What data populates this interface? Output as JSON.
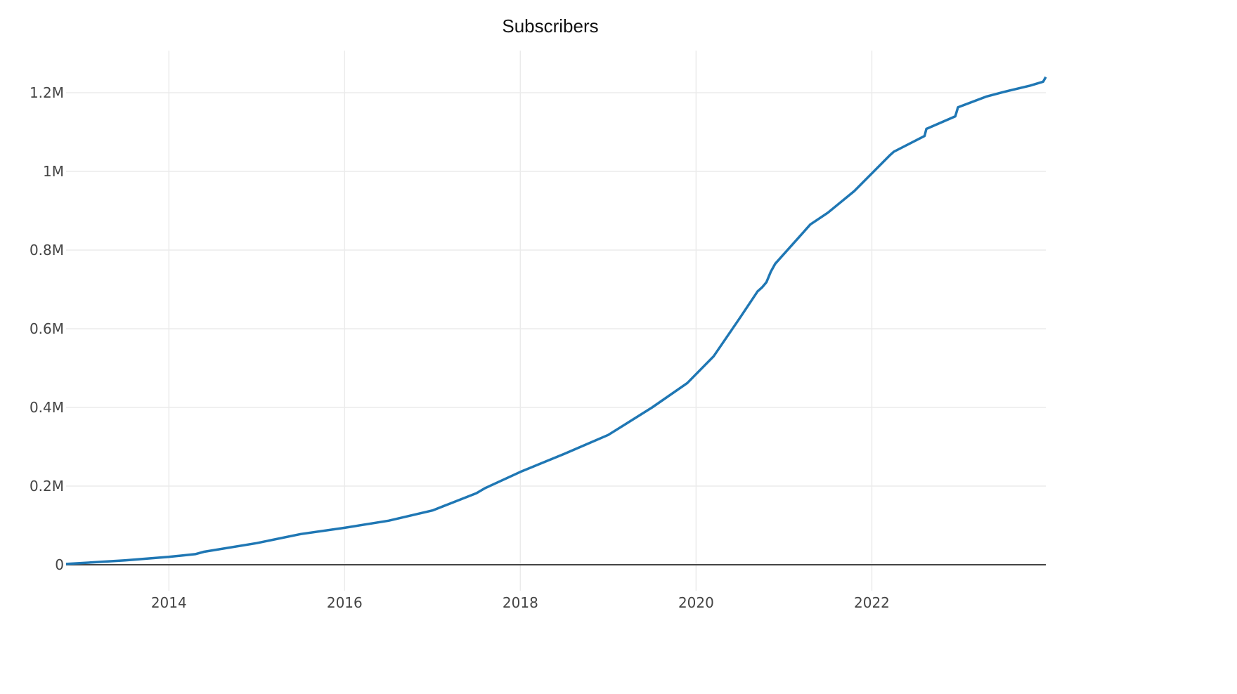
{
  "chart_data": {
    "type": "line",
    "title": "Subscribers",
    "xlabel": "",
    "ylabel": "",
    "x_ticks": [
      "2014",
      "2016",
      "2018",
      "2020",
      "2022"
    ],
    "y_ticks": [
      "0",
      "0.2M",
      "0.4M",
      "0.6M",
      "0.8M",
      "1M",
      "1.2M"
    ],
    "xlim": [
      2012.83,
      2023.98
    ],
    "ylim": [
      0,
      1300000
    ],
    "grid": true,
    "legend": null,
    "line_color": "#1f77b4",
    "series": [
      {
        "name": "Subscribers",
        "x": [
          2012.83,
          2013.5,
          2014.0,
          2014.3,
          2014.4,
          2015.0,
          2015.5,
          2016.0,
          2016.5,
          2017.0,
          2017.5,
          2017.6,
          2018.0,
          2018.5,
          2019.0,
          2019.5,
          2019.9,
          2020.2,
          2020.5,
          2020.7,
          2020.75,
          2020.8,
          2020.85,
          2020.9,
          2021.0,
          2021.3,
          2021.5,
          2021.8,
          2022.2,
          2022.25,
          2022.6,
          2022.62,
          2022.95,
          2022.98,
          2023.3,
          2023.5,
          2023.8,
          2023.95,
          2023.98
        ],
        "values": [
          2000,
          11000,
          20000,
          27000,
          33000,
          55000,
          78000,
          94000,
          112000,
          138000,
          182000,
          195000,
          236000,
          282000,
          330000,
          400000,
          462000,
          530000,
          628000,
          695000,
          705000,
          718000,
          745000,
          765000,
          790000,
          865000,
          895000,
          950000,
          1040000,
          1050000,
          1090000,
          1108000,
          1140000,
          1163000,
          1190000,
          1202000,
          1218000,
          1228000,
          1240000
        ]
      }
    ]
  }
}
